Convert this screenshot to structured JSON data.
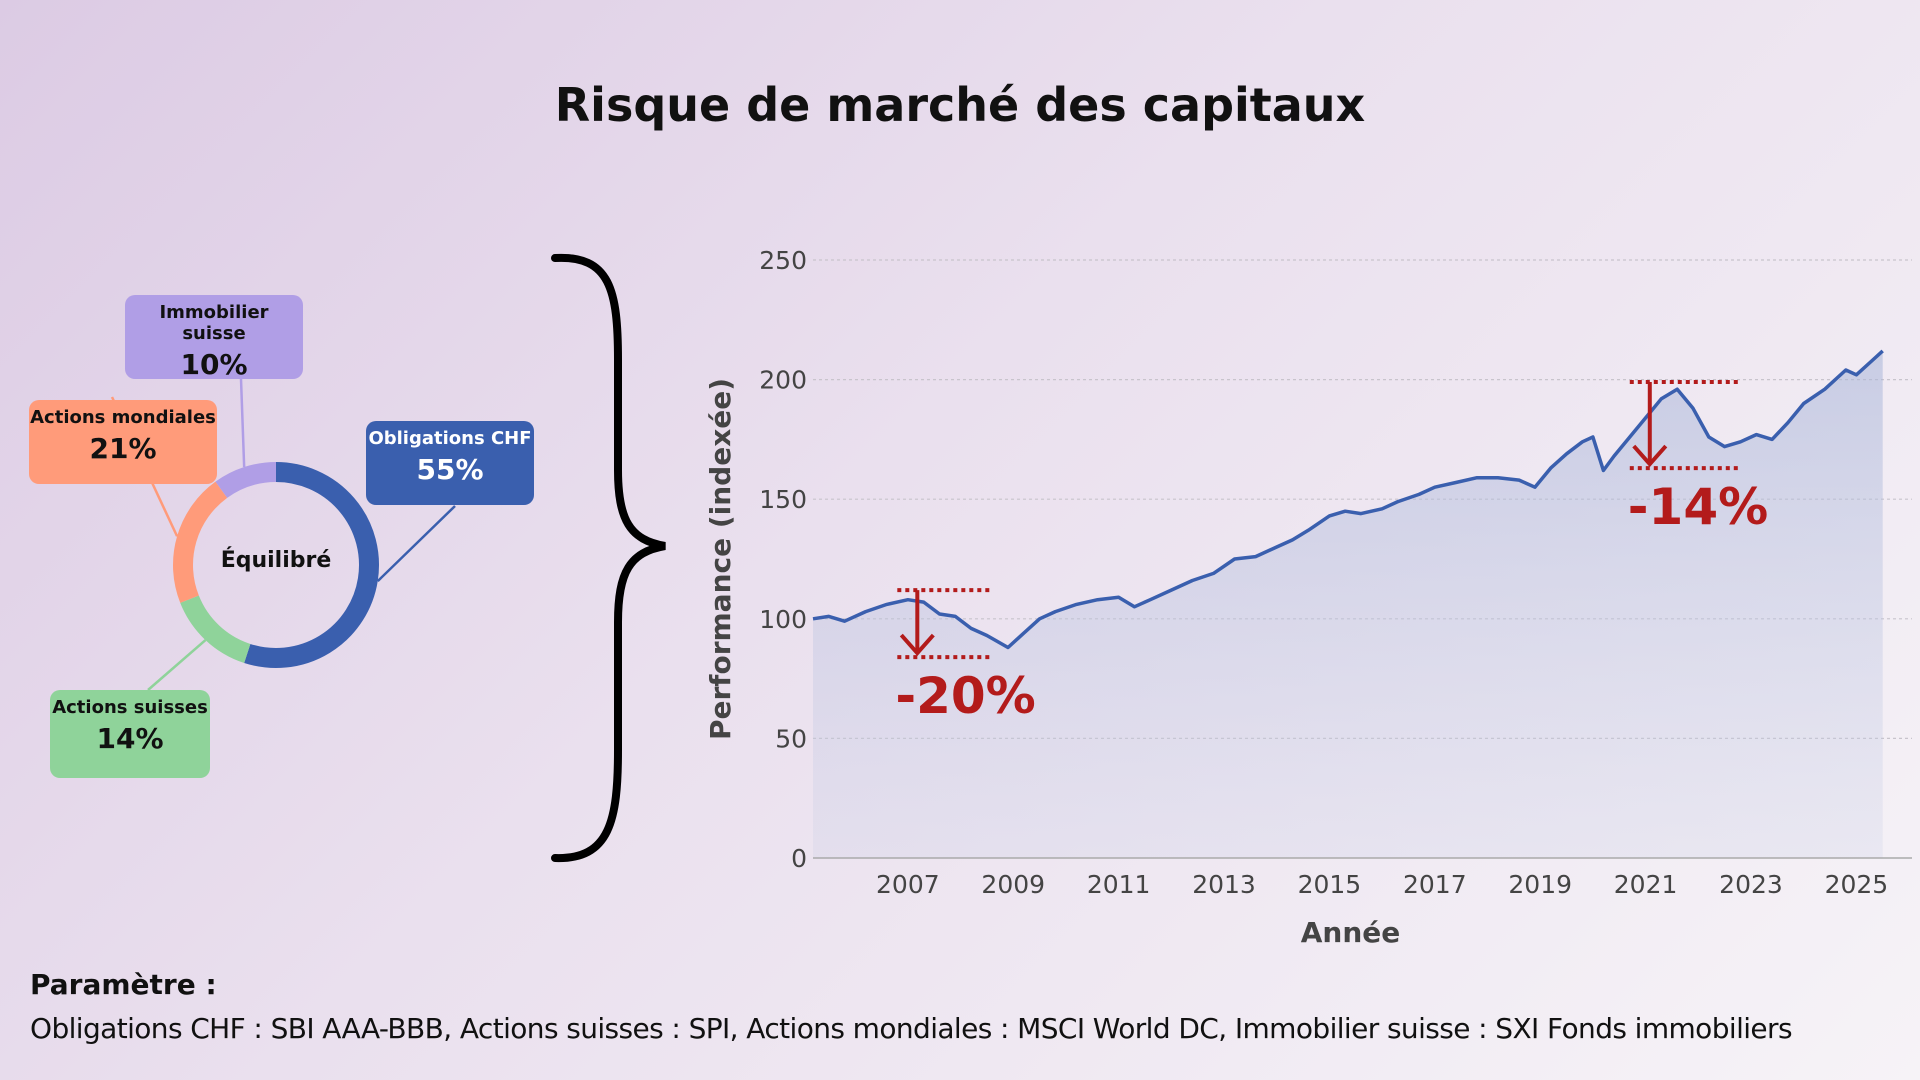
{
  "title": "Risque de marché des capitaux",
  "allocation": {
    "center_label": "Équilibré",
    "segments": [
      {
        "name": "Obligations CHF",
        "pct_label": "55%",
        "value": 55,
        "color": "#3a5fae"
      },
      {
        "name": "Actions suisses",
        "pct_label": "14%",
        "value": 14,
        "color": "#8fd39a"
      },
      {
        "name": "Actions mondiales",
        "pct_label": "21%",
        "value": 21,
        "color": "#ff9b7a"
      },
      {
        "name": "Immobilier suisse",
        "pct_label": "10%",
        "value": 10,
        "color": "#b09ee6"
      }
    ]
  },
  "chart_data": {
    "type": "area",
    "xlabel": "Année",
    "ylabel": "Performance (indexée)",
    "ylim": [
      0,
      250
    ],
    "xlim": [
      2005.2,
      2025.6
    ],
    "yticks": [
      "0",
      "50",
      "100",
      "150",
      "200",
      "250"
    ],
    "xticks": [
      "2007",
      "2009",
      "2011",
      "2013",
      "2015",
      "2017",
      "2019",
      "2021",
      "2023",
      "2025"
    ],
    "grid": true,
    "line_color": "#3a5fae",
    "series": [
      {
        "x": [
          2005.2,
          2005.5,
          2005.8,
          2006.2,
          2006.6,
          2007.0,
          2007.3,
          2007.6,
          2007.9,
          2008.2,
          2008.5,
          2008.9,
          2009.1,
          2009.5,
          2009.8,
          2010.2,
          2010.6,
          2011.0,
          2011.3,
          2011.6,
          2012.0,
          2012.4,
          2012.8,
          2013.2,
          2013.6,
          2014.0,
          2014.3,
          2014.6,
          2015.0,
          2015.3,
          2015.6,
          2016.0,
          2016.3,
          2016.7,
          2017.0,
          2017.4,
          2017.8,
          2018.2,
          2018.6,
          2018.9,
          2019.2,
          2019.5,
          2019.8,
          2020.0,
          2020.2,
          2020.4,
          2020.7,
          2021.0,
          2021.3,
          2021.6,
          2021.9,
          2022.2,
          2022.5,
          2022.8,
          2023.1,
          2023.4,
          2023.7,
          2024.0,
          2024.4,
          2024.8,
          2025.0,
          2025.3,
          2025.5
        ],
        "y": [
          100,
          101,
          99,
          103,
          106,
          108,
          107,
          102,
          101,
          96,
          93,
          88,
          92,
          100,
          103,
          106,
          108,
          109,
          105,
          108,
          112,
          116,
          119,
          125,
          126,
          130,
          133,
          137,
          143,
          145,
          144,
          146,
          149,
          152,
          155,
          157,
          159,
          159,
          158,
          155,
          163,
          169,
          174,
          176,
          162,
          168,
          176,
          184,
          192,
          196,
          188,
          176,
          172,
          174,
          177,
          175,
          182,
          190,
          196,
          204,
          202,
          208,
          212
        ]
      }
    ],
    "annotations": [
      {
        "label": "-20%",
        "x_start": 2006.8,
        "x_end": 2008.6,
        "y_top": 112,
        "y_bottom": 84
      },
      {
        "label": "-14%",
        "x_start": 2020.7,
        "x_end": 2022.8,
        "y_top": 199,
        "y_bottom": 163
      }
    ]
  },
  "parameters": {
    "heading": "Paramètre :",
    "text": "Obligations CHF : SBI AAA-BBB, Actions suisses : SPI, Actions mondiales : MSCI World DC, Immobilier suisse : SXI Fonds immobiliers"
  }
}
